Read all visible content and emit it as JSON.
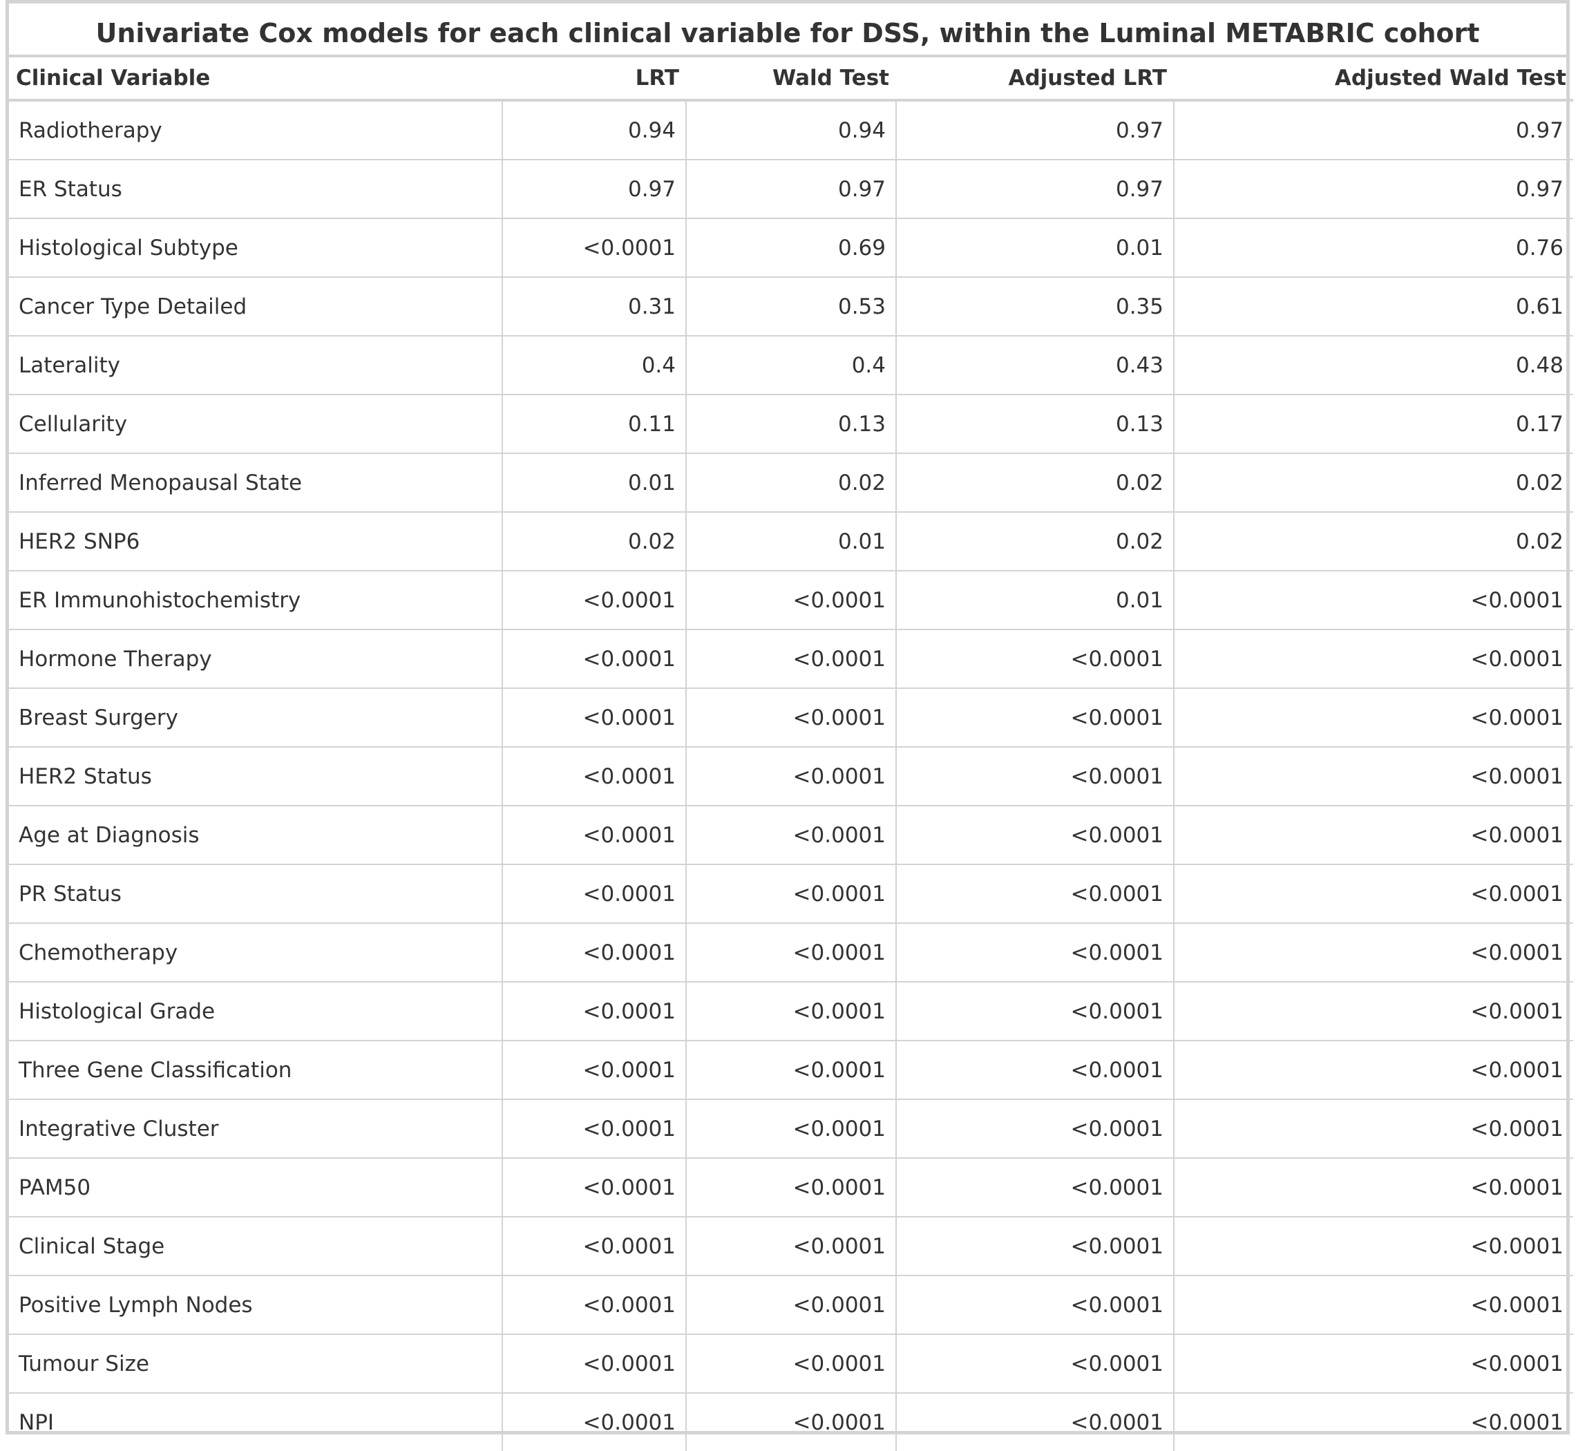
{
  "title": "Univariate Cox models for each clinical variable for DSS, within the Luminal METABRIC cohort",
  "columns": [
    "Clinical Variable",
    "LRT",
    "Wald Test",
    "Adjusted LRT",
    "Adjusted Wald Test"
  ],
  "rows": [
    [
      "Radiotherapy",
      "0.94",
      "0.94",
      "0.97",
      "0.97"
    ],
    [
      "ER Status",
      "0.97",
      "0.97",
      "0.97",
      "0.97"
    ],
    [
      "Histological Subtype",
      "<0.0001",
      "0.69",
      "0.01",
      "0.76"
    ],
    [
      "Cancer Type Detailed",
      "0.31",
      "0.53",
      "0.35",
      "0.61"
    ],
    [
      "Laterality",
      "0.4",
      "0.4",
      "0.43",
      "0.48"
    ],
    [
      "Cellularity",
      "0.11",
      "0.13",
      "0.13",
      "0.17"
    ],
    [
      "Inferred Menopausal State",
      "0.01",
      "0.02",
      "0.02",
      "0.02"
    ],
    [
      "HER2 SNP6",
      "0.02",
      "0.01",
      "0.02",
      "0.02"
    ],
    [
      "ER Immunohistochemistry",
      "<0.0001",
      "<0.0001",
      "0.01",
      "<0.0001"
    ],
    [
      "Hormone Therapy",
      "<0.0001",
      "<0.0001",
      "<0.0001",
      "<0.0001"
    ],
    [
      "Breast Surgery",
      "<0.0001",
      "<0.0001",
      "<0.0001",
      "<0.0001"
    ],
    [
      "HER2 Status",
      "<0.0001",
      "<0.0001",
      "<0.0001",
      "<0.0001"
    ],
    [
      "Age at Diagnosis",
      "<0.0001",
      "<0.0001",
      "<0.0001",
      "<0.0001"
    ],
    [
      "PR Status",
      "<0.0001",
      "<0.0001",
      "<0.0001",
      "<0.0001"
    ],
    [
      "Chemotherapy",
      "<0.0001",
      "<0.0001",
      "<0.0001",
      "<0.0001"
    ],
    [
      "Histological Grade",
      "<0.0001",
      "<0.0001",
      "<0.0001",
      "<0.0001"
    ],
    [
      "Three Gene Classification",
      "<0.0001",
      "<0.0001",
      "<0.0001",
      "<0.0001"
    ],
    [
      "Integrative Cluster",
      "<0.0001",
      "<0.0001",
      "<0.0001",
      "<0.0001"
    ],
    [
      "PAM50",
      "<0.0001",
      "<0.0001",
      "<0.0001",
      "<0.0001"
    ],
    [
      "Clinical Stage",
      "<0.0001",
      "<0.0001",
      "<0.0001",
      "<0.0001"
    ],
    [
      "Positive Lymph Nodes",
      "<0.0001",
      "<0.0001",
      "<0.0001",
      "<0.0001"
    ],
    [
      "Tumour Size",
      "<0.0001",
      "<0.0001",
      "<0.0001",
      "<0.0001"
    ],
    [
      "NPI",
      "<0.0001",
      "<0.0001",
      "<0.0001",
      "<0.0001"
    ]
  ]
}
